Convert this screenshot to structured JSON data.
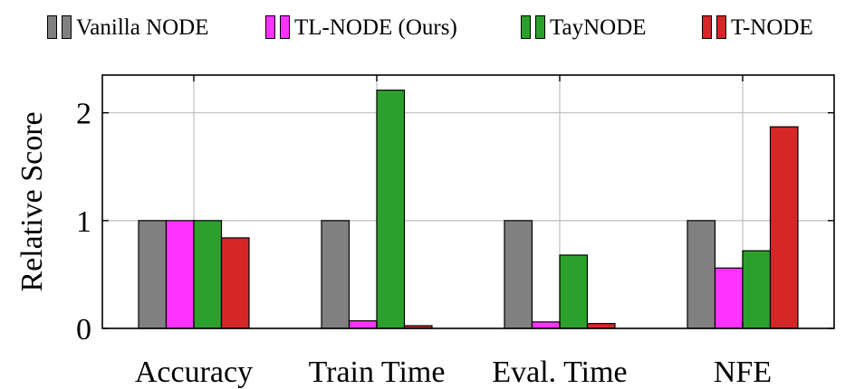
{
  "chart_data": {
    "type": "bar",
    "categories": [
      "Accuracy",
      "Train Time",
      "Eval. Time",
      "NFE"
    ],
    "series": [
      {
        "name": "Vanilla NODE",
        "color": "#808080",
        "values": [
          1.0,
          1.0,
          1.0,
          1.0
        ]
      },
      {
        "name": "TL-NODE (Ours)",
        "color": "#ff33ff",
        "values": [
          1.0,
          0.07,
          0.06,
          0.56
        ]
      },
      {
        "name": "TayNODE",
        "color": "#2ca02c",
        "values": [
          1.0,
          2.21,
          0.68,
          0.72
        ]
      },
      {
        "name": "T-NODE",
        "color": "#d62728",
        "values": [
          0.84,
          0.025,
          0.045,
          1.87
        ]
      }
    ],
    "ylabel": "Relative Score",
    "xlabel": "",
    "ylim": [
      0,
      2.35
    ],
    "yticks": [
      0,
      1,
      2
    ],
    "grid": true,
    "legend_position": "top"
  }
}
